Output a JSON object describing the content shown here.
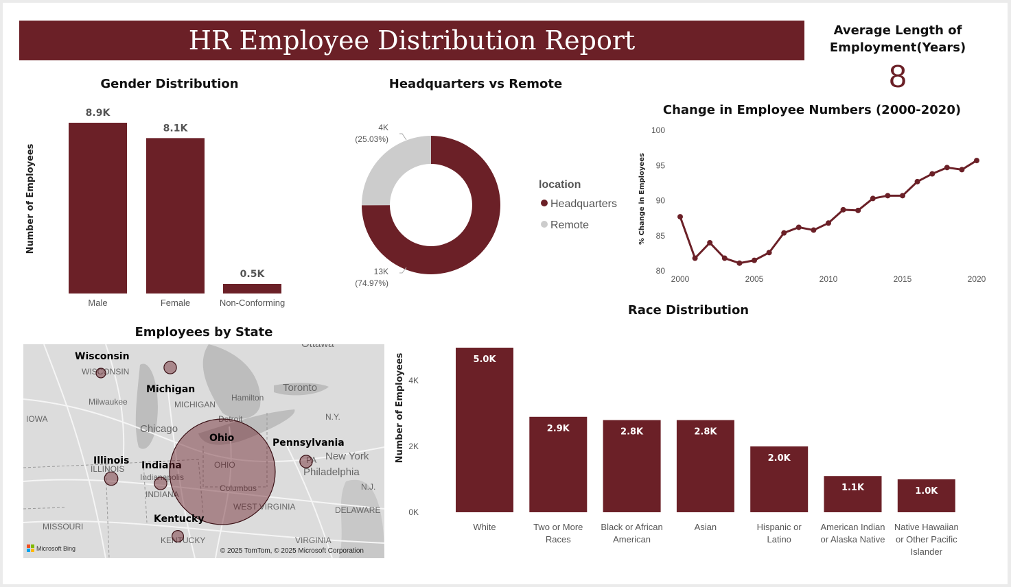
{
  "report": {
    "title": "HR Employee Distribution Report",
    "kpi_label": "Average Length of Employment(Years)",
    "kpi_label_line1": "Average Length of",
    "kpi_label_line2": "Employment(Years)",
    "kpi_value": "8"
  },
  "colors": {
    "accent": "#6b2027",
    "remote": "#cccccc",
    "map_bg": "#dcdcdc"
  },
  "chart_data": [
    {
      "id": "gender",
      "type": "bar",
      "title": "Gender Distribution",
      "ylabel": "Number of Employees",
      "categories": [
        "Male",
        "Female",
        "Non-Conforming"
      ],
      "values": [
        8900,
        8100,
        500
      ],
      "data_labels": [
        "8.9K",
        "8.1K",
        "0.5K"
      ],
      "ylim": [
        0,
        9400
      ]
    },
    {
      "id": "location",
      "type": "pie",
      "title": "Headquarters vs Remote",
      "legend_title": "location",
      "legend_position": "right",
      "slices": [
        {
          "name": "Headquarters",
          "value": 74.97,
          "label": "13K",
          "pct_label": "(74.97%)"
        },
        {
          "name": "Remote",
          "value": 25.03,
          "label": "4K",
          "pct_label": "(25.03%)"
        }
      ]
    },
    {
      "id": "trend",
      "type": "line",
      "title": "Change in Employee Numbers (2000-2020)",
      "ylabel": "% Change in Employees",
      "x": [
        2000,
        2001,
        2002,
        2003,
        2004,
        2005,
        2006,
        2007,
        2008,
        2009,
        2010,
        2011,
        2012,
        2013,
        2014,
        2015,
        2016,
        2017,
        2018,
        2019,
        2020
      ],
      "y": [
        87.7,
        81.8,
        84.0,
        81.8,
        81.1,
        81.5,
        82.6,
        85.4,
        86.2,
        85.8,
        86.8,
        88.7,
        88.6,
        90.3,
        90.7,
        90.7,
        92.7,
        93.8,
        94.7,
        94.4,
        95.7
      ],
      "xticks": [
        "2000",
        "2005",
        "2010",
        "2015",
        "2020"
      ],
      "yticks": [
        "80",
        "85",
        "90",
        "95",
        "100"
      ],
      "ylim": [
        80,
        100
      ],
      "xlim": [
        2000,
        2020
      ]
    },
    {
      "id": "race",
      "type": "bar",
      "title": "Race Distribution",
      "ylabel": "Number of Employees",
      "categories": [
        "White",
        "Two or More Races",
        "Black or African American",
        "Asian",
        "Hispanic or Latino",
        "American Indian or Alaska Native",
        "Native Hawaiian or Other Pacific Islander"
      ],
      "category_lines": [
        [
          "White"
        ],
        [
          "Two or More",
          "Races"
        ],
        [
          "Black or African",
          "American"
        ],
        [
          "Asian"
        ],
        [
          "Hispanic or",
          "Latino"
        ],
        [
          "American Indian",
          "or Alaska Native"
        ],
        [
          "Native Hawaiian",
          "or Other Pacific",
          "Islander"
        ]
      ],
      "values": [
        5000,
        2900,
        2800,
        2800,
        2000,
        1100,
        1000
      ],
      "data_labels": [
        "5.0K",
        "2.9K",
        "2.8K",
        "2.8K",
        "2.0K",
        "1.1K",
        "1.0K"
      ],
      "yticks": [
        "0K",
        "2K",
        "4K"
      ],
      "ylim": [
        0,
        5000
      ]
    },
    {
      "id": "states",
      "type": "map",
      "title": "Employees by State",
      "bubbles": [
        {
          "state": "Wisconsin",
          "size": 1
        },
        {
          "state": "Michigan",
          "size": 1.3
        },
        {
          "state": "Illinois",
          "size": 1.4
        },
        {
          "state": "Indiana",
          "size": 1.3
        },
        {
          "state": "Ohio",
          "size": 11
        },
        {
          "state": "Pennsylvania",
          "size": 1.3
        },
        {
          "state": "Kentucky",
          "size": 1.2
        }
      ]
    }
  ],
  "map": {
    "place_labels": [
      "WISCONSIN",
      "Milwaukee",
      "MICHIGAN",
      "Hamilton",
      "Toronto",
      "Ottawa",
      "IOWA",
      "Chicago",
      "Detroit",
      "N.Y.",
      "ILLINOIS",
      "Indianapolis",
      "INDIANA",
      "OHIO",
      "Columbus",
      "New York",
      "Philadelphia",
      "PA",
      "N.J.",
      "WEST VIRGINIA",
      "DELAWARE",
      "MISSOURI",
      "KENTUCKY",
      "VIRGINIA"
    ],
    "attribution": "© 2025 TomTom, © 2025 Microsoft Corporation",
    "brand": "Microsoft Bing"
  }
}
